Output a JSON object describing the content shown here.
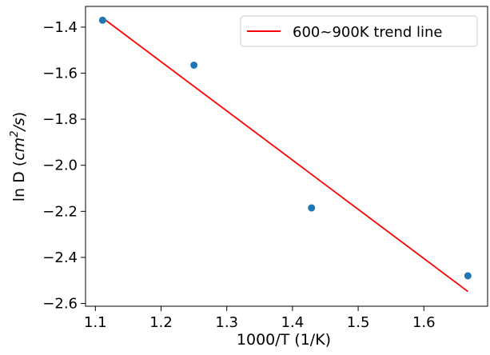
{
  "chart_data": {
    "type": "scatter",
    "xlabel": "1000/T (1/K)",
    "ylabel_prefix": "ln D (",
    "ylabel_unit_base": "cm",
    "ylabel_unit_exp": "2",
    "ylabel_unit_tail": "/s",
    "ylabel_suffix": ")",
    "xlim": [
      1.085,
      1.697
    ],
    "ylim": [
      -2.612,
      -1.31
    ],
    "xticks": [
      1.1,
      1.2,
      1.3,
      1.4,
      1.5,
      1.6
    ],
    "xtick_labels": [
      "1.1",
      "1.2",
      "1.3",
      "1.4",
      "1.5",
      "1.6"
    ],
    "yticks": [
      -1.4,
      -1.6,
      -1.8,
      -2.0,
      -2.2,
      -2.4,
      -2.6
    ],
    "ytick_labels": [
      "−1.4",
      "−1.6",
      "−1.8",
      "−2.0",
      "−2.2",
      "−2.4",
      "−2.6"
    ],
    "grid": false,
    "legend_position": "top-right",
    "series": [
      {
        "kind": "scatter",
        "color": "#1f77b4",
        "points": [
          {
            "x": 1.111,
            "y": -1.37
          },
          {
            "x": 1.25,
            "y": -1.565
          },
          {
            "x": 1.429,
            "y": -2.185
          },
          {
            "x": 1.667,
            "y": -2.48
          }
        ]
      },
      {
        "kind": "line",
        "name": "600~900K trend line",
        "color": "#ff0000",
        "points": [
          {
            "x": 1.111,
            "y": -1.36
          },
          {
            "x": 1.667,
            "y": -2.548
          }
        ]
      }
    ]
  }
}
